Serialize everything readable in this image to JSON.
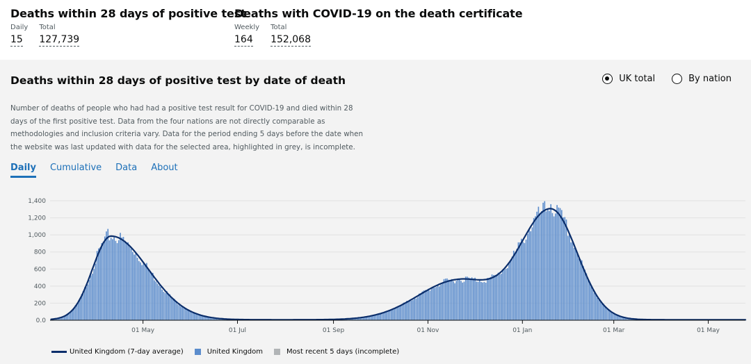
{
  "metrics": [
    {
      "title": "Deaths within 28 days of positive test",
      "items": [
        {
          "label": "Daily",
          "value": "15"
        },
        {
          "label": "Total",
          "value": "127,739"
        }
      ]
    },
    {
      "title": "Deaths with COVID-19 on the death certificate",
      "items": [
        {
          "label": "Weekly",
          "value": "164"
        },
        {
          "label": "Total",
          "value": "152,068"
        }
      ]
    }
  ],
  "panel": {
    "title": "Deaths within 28 days of positive test by date of death",
    "radios": [
      {
        "label": "UK total",
        "selected": true
      },
      {
        "label": "By nation",
        "selected": false
      }
    ],
    "description": "Number of deaths of people who had had a positive test result for COVID-19 and died within 28 days of the first positive test. Data from the four nations are not directly comparable as methodologies and inclusion criteria vary. Data for the period ending 5 days before the date when the website was last updated with data for the selected area, highlighted in grey, is incomplete.",
    "tabs": [
      "Daily",
      "Cumulative",
      "Data",
      "About"
    ],
    "active_tab": "Daily"
  },
  "colors": {
    "bar": "#5b8ccc",
    "line": "#0b2e6b",
    "incomplete": "#b1b4b6",
    "accent": "#1d70b8"
  },
  "chart_data": {
    "type": "bar",
    "x_range": [
      "2020-03-02",
      "2021-05-25"
    ],
    "ylim": [
      0,
      1400
    ],
    "yticks": [
      "0.0",
      "200",
      "400",
      "600",
      "800",
      "1,000",
      "1,200",
      "1,400"
    ],
    "xticks": [
      "01 May",
      "01 Jul",
      "01 Sep",
      "01 Nov",
      "01 Jan",
      "01 Mar",
      "01 May"
    ],
    "peaks_7day_avg": [
      {
        "date": "2020-04-10",
        "value": 980
      },
      {
        "date": "2020-11-20",
        "value": 460
      },
      {
        "date": "2021-01-19",
        "value": 1290
      }
    ],
    "max_daily_bars": [
      {
        "date": "2020-04-08",
        "value": 1070
      },
      {
        "date": "2021-01-19",
        "value": 1360
      }
    ],
    "legend": [
      "United Kingdom (7-day average)",
      "United Kingdom",
      "Most recent 5 days (incomplete)"
    ]
  }
}
